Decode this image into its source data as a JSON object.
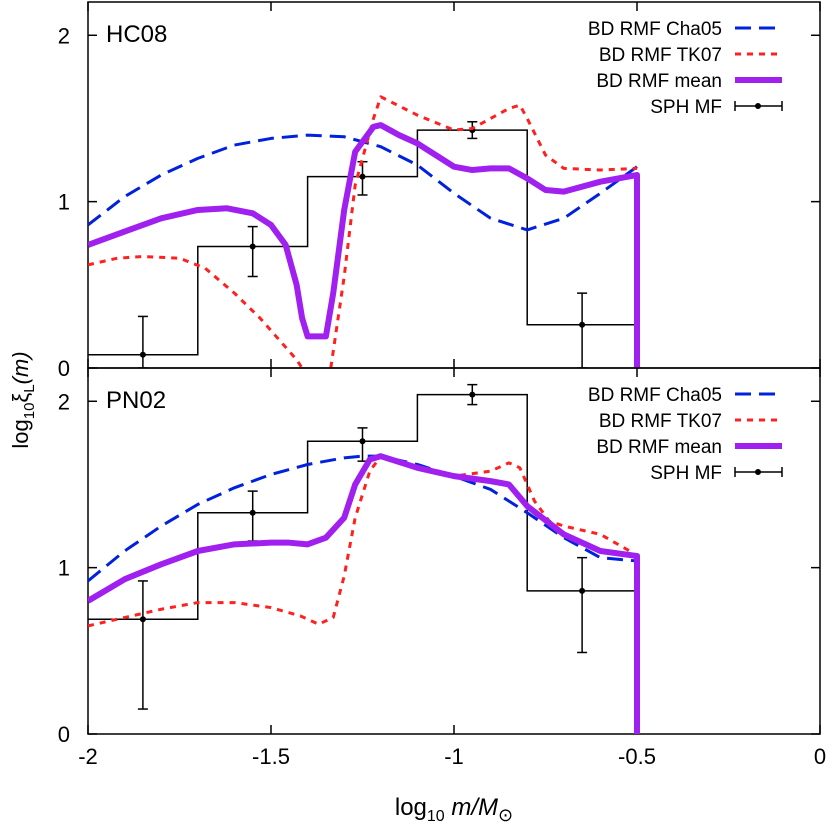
{
  "chart_data": [
    {
      "type": "line",
      "panel_label": "HC08",
      "xlim": [
        -2,
        0
      ],
      "ylim": [
        0,
        2.2
      ],
      "xticks": [
        -2,
        -1.5,
        -1,
        -0.5,
        0
      ],
      "yticks": [
        0,
        1,
        2
      ],
      "ylabel": "log₁₀ξₗ(m)",
      "legend_position": "top-right",
      "legend": [
        "BD RMF Cha05",
        "BD RMF TK07",
        "BD RMF mean",
        "SPH MF"
      ],
      "series": [
        {
          "name": "BD RMF Cha05",
          "style": "dashed",
          "color": "#0022dd",
          "x": [
            -2.0,
            -1.9,
            -1.8,
            -1.7,
            -1.6,
            -1.5,
            -1.4,
            -1.3,
            -1.2,
            -1.1,
            -1.0,
            -0.9,
            -0.8,
            -0.7,
            -0.6,
            -0.5
          ],
          "y": [
            0.86,
            1.03,
            1.16,
            1.26,
            1.34,
            1.38,
            1.4,
            1.39,
            1.33,
            1.22,
            1.05,
            0.9,
            0.83,
            0.9,
            1.05,
            1.21
          ]
        },
        {
          "name": "BD RMF TK07",
          "style": "dotted",
          "color": "#ff2020",
          "x": [
            -2.0,
            -1.92,
            -1.85,
            -1.75,
            -1.68,
            -1.6,
            -1.53,
            -1.47,
            -1.43,
            -1.4,
            -1.34,
            -1.33,
            -1.3,
            -1.27,
            -1.22,
            -1.2,
            -1.1,
            -1.0,
            -0.95,
            -0.85,
            -0.82,
            -0.8,
            -0.75,
            -0.7,
            -0.6,
            -0.5
          ],
          "y": [
            0.62,
            0.66,
            0.67,
            0.66,
            0.6,
            0.45,
            0.3,
            0.15,
            0.05,
            -0.05,
            -0.05,
            0.1,
            0.55,
            1.1,
            1.5,
            1.63,
            1.52,
            1.43,
            1.44,
            1.56,
            1.58,
            1.5,
            1.28,
            1.2,
            1.19,
            1.2
          ]
        },
        {
          "name": "BD RMF mean",
          "style": "solid-thick",
          "color": "#a020f0",
          "x": [
            -2.0,
            -1.9,
            -1.8,
            -1.7,
            -1.62,
            -1.55,
            -1.5,
            -1.46,
            -1.43,
            -1.415,
            -1.4,
            -1.35,
            -1.33,
            -1.3,
            -1.27,
            -1.22,
            -1.2,
            -1.15,
            -1.1,
            -1.05,
            -1.0,
            -0.95,
            -0.9,
            -0.85,
            -0.8,
            -0.75,
            -0.7,
            -0.6,
            -0.5,
            -0.5
          ],
          "y": [
            0.74,
            0.82,
            0.9,
            0.95,
            0.96,
            0.93,
            0.86,
            0.74,
            0.5,
            0.3,
            0.19,
            0.19,
            0.45,
            0.95,
            1.3,
            1.45,
            1.46,
            1.4,
            1.35,
            1.28,
            1.21,
            1.19,
            1.2,
            1.2,
            1.14,
            1.07,
            1.06,
            1.12,
            1.16,
            0.0
          ]
        }
      ],
      "histogram": {
        "name": "SPH MF",
        "bin_edges": [
          -2.0,
          -1.7,
          -1.4,
          -1.1,
          -0.8,
          -0.5
        ],
        "values": [
          0.08,
          0.73,
          1.15,
          1.43,
          0.26
        ],
        "points": {
          "x": [
            -1.85,
            -1.55,
            -1.25,
            -0.95,
            -0.65
          ],
          "y": [
            0.08,
            0.73,
            1.15,
            1.43,
            0.26
          ],
          "err_low": [
            0.08,
            0.18,
            0.11,
            0.05,
            0.26
          ],
          "err_high": [
            0.23,
            0.12,
            0.09,
            0.05,
            0.19
          ]
        }
      }
    },
    {
      "type": "line",
      "panel_label": "PN02",
      "xlim": [
        -2,
        0
      ],
      "ylim": [
        0,
        2.2
      ],
      "xticks": [
        -2,
        -1.5,
        -1,
        -0.5,
        0
      ],
      "yticks": [
        0,
        1,
        2
      ],
      "xlabel": "log₁₀ m/M⊙",
      "legend_position": "top-right",
      "legend": [
        "BD RMF Cha05",
        "BD RMF TK07",
        "BD RMF mean",
        "SPH MF"
      ],
      "series": [
        {
          "name": "BD RMF Cha05",
          "style": "dashed",
          "color": "#0022dd",
          "x": [
            -2.0,
            -1.9,
            -1.8,
            -1.7,
            -1.6,
            -1.5,
            -1.4,
            -1.3,
            -1.25,
            -1.2,
            -1.1,
            -1.0,
            -0.9,
            -0.8,
            -0.7,
            -0.6,
            -0.5
          ],
          "y": [
            0.92,
            1.1,
            1.25,
            1.38,
            1.48,
            1.56,
            1.62,
            1.66,
            1.67,
            1.67,
            1.62,
            1.55,
            1.47,
            1.33,
            1.18,
            1.06,
            1.04
          ]
        },
        {
          "name": "BD RMF TK07",
          "style": "dotted",
          "color": "#ff2020",
          "x": [
            -2.0,
            -1.9,
            -1.8,
            -1.7,
            -1.6,
            -1.5,
            -1.42,
            -1.37,
            -1.33,
            -1.3,
            -1.27,
            -1.23,
            -1.2,
            -1.1,
            -1.0,
            -0.9,
            -0.85,
            -0.82,
            -0.78,
            -0.74,
            -0.7,
            -0.6,
            -0.52,
            -0.5
          ],
          "y": [
            0.65,
            0.7,
            0.75,
            0.79,
            0.79,
            0.76,
            0.71,
            0.66,
            0.7,
            0.95,
            1.3,
            1.58,
            1.67,
            1.6,
            1.55,
            1.58,
            1.63,
            1.6,
            1.4,
            1.28,
            1.25,
            1.2,
            1.1,
            1.06
          ]
        },
        {
          "name": "BD RMF mean",
          "style": "solid-thick",
          "color": "#a020f0",
          "x": [
            -2.0,
            -1.9,
            -1.8,
            -1.7,
            -1.6,
            -1.5,
            -1.45,
            -1.4,
            -1.35,
            -1.3,
            -1.27,
            -1.23,
            -1.2,
            -1.1,
            -1.0,
            -0.9,
            -0.85,
            -0.8,
            -0.7,
            -0.6,
            -0.5,
            -0.5
          ],
          "y": [
            0.8,
            0.93,
            1.02,
            1.1,
            1.14,
            1.15,
            1.15,
            1.14,
            1.18,
            1.3,
            1.5,
            1.65,
            1.67,
            1.6,
            1.55,
            1.52,
            1.5,
            1.37,
            1.2,
            1.1,
            1.07,
            0.0
          ]
        }
      ],
      "histogram": {
        "name": "SPH MF",
        "bin_edges": [
          -2.0,
          -1.7,
          -1.4,
          -1.1,
          -0.8,
          -0.5
        ],
        "values": [
          0.69,
          1.33,
          1.76,
          2.04,
          0.86
        ],
        "points": {
          "x": [
            -1.85,
            -1.55,
            -1.25,
            -0.95,
            -0.65
          ],
          "y": [
            0.69,
            1.33,
            1.76,
            2.04,
            0.86
          ],
          "err_low": [
            0.54,
            0.17,
            0.12,
            0.06,
            0.37
          ],
          "err_high": [
            0.23,
            0.13,
            0.08,
            0.06,
            0.2
          ]
        }
      }
    }
  ],
  "shared": {
    "ylabel_main": "log",
    "ylabel_sub": "10",
    "ylabel_xi": "ξ",
    "ylabel_L": "L",
    "ylabel_arg": "(m)",
    "xlabel_main": "log",
    "xlabel_sub": "10",
    "xlabel_m": " m/M",
    "xlabel_sun": "⊙"
  }
}
